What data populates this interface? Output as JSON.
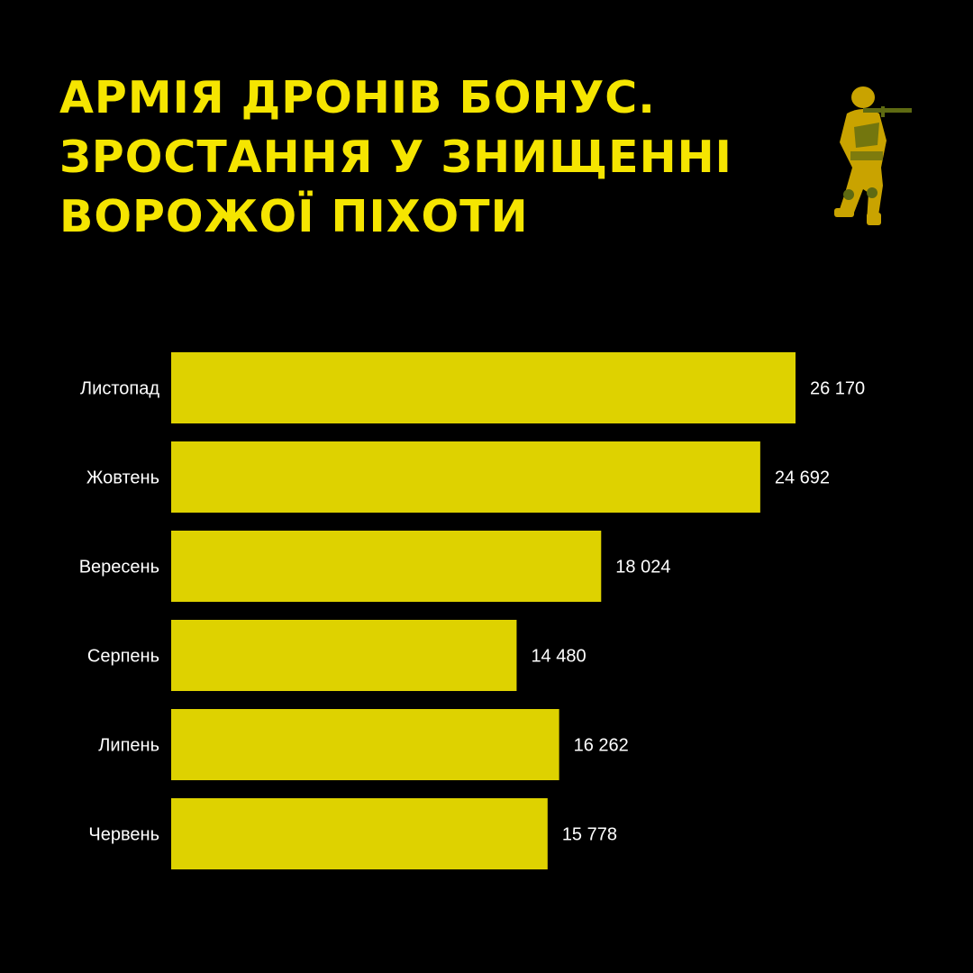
{
  "title_lines": [
    "Армія дронів бонус.",
    "Зростання у знищенні",
    "ворожої піхоти"
  ],
  "illustration": "soldier-with-rifle",
  "colors": {
    "background": "#000000",
    "title": "#F5E500",
    "bar": "#DED200",
    "text": "#FFFFFF"
  },
  "chart_data": {
    "type": "bar",
    "orientation": "horizontal",
    "categories": [
      "Листопад",
      "Жовтень",
      "Вересень",
      "Серпень",
      "Липень",
      "Червень"
    ],
    "values": [
      26170,
      24692,
      18024,
      14480,
      16262,
      15778
    ],
    "value_labels": [
      "26 170",
      "24 692",
      "18 024",
      "14 480",
      "16 262",
      "15 778"
    ],
    "xlim": [
      0,
      26170
    ],
    "grid": false
  }
}
